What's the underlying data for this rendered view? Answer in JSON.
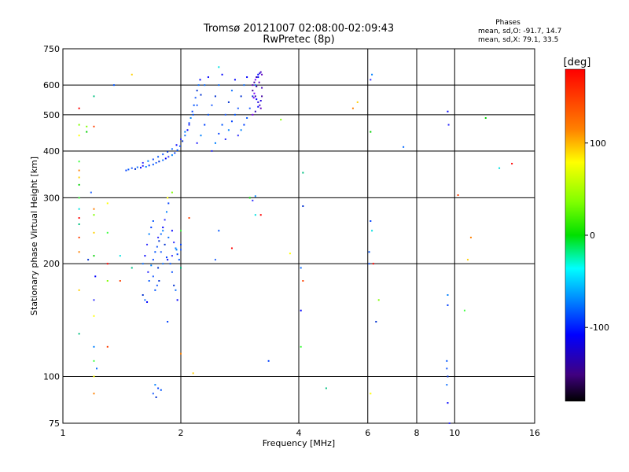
{
  "chart_data": {
    "type": "scatter",
    "title": "Tromsø 20121007 02:08:00-02:09:43",
    "subtitle": "RwPretec (8p)",
    "stats": {
      "label": "Phases",
      "line_o": "mean, sd,O: -91.7, 14.7",
      "line_x": "mean, sd,X:  79.1, 33.5"
    },
    "xlabel": "Frequency [MHz]",
    "ylabel": "Stationary phase Virtual Height [km]",
    "x_scale": "log2",
    "y_scale": "log",
    "xlim": [
      1,
      16
    ],
    "ylim": [
      75,
      750
    ],
    "x_ticks": [
      {
        "value": 1,
        "label": "1"
      },
      {
        "value": 2,
        "label": "2"
      },
      {
        "value": 4,
        "label": "4"
      },
      {
        "value": 6,
        "label": "6"
      },
      {
        "value": 8,
        "label": "8"
      },
      {
        "value": 10,
        "label": "10"
      },
      {
        "value": 16,
        "label": "16"
      }
    ],
    "y_ticks": [
      {
        "value": 75,
        "label": "75"
      },
      {
        "value": 100,
        "label": "100"
      },
      {
        "value": 200,
        "label": "200"
      },
      {
        "value": 300,
        "label": "300"
      },
      {
        "value": 400,
        "label": "400"
      },
      {
        "value": 500,
        "label": "500"
      },
      {
        "value": 600,
        "label": "600"
      },
      {
        "value": 750,
        "label": "750"
      }
    ],
    "grid": true,
    "colorbar": {
      "unit_label": "[deg]",
      "range": [
        -180,
        180
      ],
      "ticks": [
        {
          "value": 100,
          "label": "100"
        },
        {
          "value": 0,
          "label": "0"
        },
        {
          "value": -100,
          "label": "-100"
        }
      ]
    },
    "series": [
      {
        "mode": "O",
        "points": [
          [
            1.45,
            355
          ],
          [
            1.47,
            357
          ],
          [
            1.5,
            360
          ],
          [
            1.53,
            358
          ],
          [
            1.55,
            362
          ],
          [
            1.58,
            361
          ],
          [
            1.6,
            365
          ],
          [
            1.63,
            363
          ],
          [
            1.66,
            366
          ],
          [
            1.7,
            368
          ],
          [
            1.73,
            372
          ],
          [
            1.76,
            375
          ],
          [
            1.8,
            378
          ],
          [
            1.83,
            382
          ],
          [
            1.86,
            386
          ],
          [
            1.9,
            390
          ],
          [
            1.93,
            395
          ],
          [
            1.96,
            402
          ],
          [
            1.99,
            412
          ],
          [
            2.02,
            425
          ],
          [
            2.05,
            440
          ],
          [
            2.08,
            455
          ],
          [
            2.1,
            470
          ],
          [
            2.12,
            490
          ],
          [
            2.14,
            510
          ],
          [
            2.16,
            530
          ],
          [
            2.18,
            555
          ],
          [
            2.2,
            580
          ],
          [
            2.22,
            600
          ],
          [
            2.24,
            620
          ],
          [
            1.6,
            372
          ],
          [
            1.65,
            376
          ],
          [
            1.7,
            380
          ],
          [
            1.75,
            386
          ],
          [
            1.8,
            392
          ],
          [
            1.85,
            398
          ],
          [
            1.9,
            405
          ],
          [
            1.95,
            415
          ],
          [
            2.0,
            430
          ],
          [
            2.05,
            450
          ],
          [
            2.1,
            475
          ],
          [
            2.15,
            500
          ],
          [
            2.2,
            530
          ],
          [
            2.25,
            565
          ],
          [
            2.3,
            600
          ],
          [
            2.35,
            630
          ],
          [
            2.2,
            420
          ],
          [
            2.25,
            440
          ],
          [
            2.3,
            470
          ],
          [
            2.35,
            500
          ],
          [
            2.4,
            530
          ],
          [
            2.45,
            560
          ],
          [
            2.5,
            600
          ],
          [
            2.55,
            640
          ],
          [
            2.4,
            400
          ],
          [
            2.45,
            420
          ],
          [
            2.5,
            445
          ],
          [
            2.55,
            470
          ],
          [
            2.6,
            500
          ],
          [
            2.65,
            540
          ],
          [
            2.7,
            580
          ],
          [
            2.75,
            620
          ],
          [
            2.6,
            430
          ],
          [
            2.65,
            455
          ],
          [
            2.7,
            480
          ],
          [
            2.75,
            500
          ],
          [
            2.8,
            520
          ],
          [
            2.85,
            560
          ],
          [
            2.9,
            600
          ],
          [
            2.95,
            630
          ],
          [
            2.8,
            440
          ],
          [
            2.85,
            455
          ],
          [
            2.9,
            470
          ],
          [
            2.95,
            490
          ],
          [
            3.0,
            520
          ],
          [
            3.05,
            560
          ],
          [
            3.1,
            600
          ],
          [
            3.15,
            630
          ],
          [
            1.65,
            190
          ],
          [
            1.68,
            198
          ],
          [
            1.7,
            205
          ],
          [
            1.72,
            215
          ],
          [
            1.74,
            222
          ],
          [
            1.76,
            230
          ],
          [
            1.78,
            240
          ],
          [
            1.8,
            250
          ],
          [
            1.82,
            262
          ],
          [
            1.84,
            275
          ],
          [
            1.86,
            290
          ],
          [
            1.66,
            180
          ],
          [
            1.7,
            185
          ],
          [
            1.75,
            195
          ],
          [
            1.8,
            200
          ],
          [
            1.85,
            205
          ],
          [
            1.9,
            210
          ],
          [
            1.95,
            218
          ],
          [
            2.0,
            225
          ],
          [
            1.72,
            170
          ],
          [
            1.74,
            175
          ],
          [
            1.76,
            180
          ],
          [
            1.6,
            200
          ],
          [
            1.62,
            210
          ],
          [
            1.64,
            225
          ],
          [
            1.66,
            240
          ],
          [
            1.68,
            250
          ],
          [
            1.7,
            260
          ],
          [
            1.78,
            215
          ],
          [
            1.82,
            225
          ],
          [
            1.86,
            235
          ],
          [
            1.9,
            245
          ],
          [
            1.92,
            228
          ],
          [
            1.94,
            220
          ],
          [
            1.96,
            212
          ],
          [
            1.98,
            205
          ],
          [
            2.0,
            218
          ],
          [
            1.6,
            165
          ],
          [
            1.62,
            160
          ],
          [
            1.64,
            158
          ],
          [
            1.75,
            235
          ],
          [
            1.8,
            245
          ],
          [
            1.84,
            208
          ],
          [
            1.88,
            200
          ],
          [
            1.9,
            190
          ],
          [
            1.92,
            175
          ],
          [
            1.94,
            170
          ],
          [
            1.96,
            160
          ],
          [
            3.05,
            295
          ],
          [
            3.1,
            303
          ],
          [
            3.35,
            110
          ],
          [
            1.35,
            600
          ],
          [
            1.18,
            310
          ],
          [
            1.16,
            205
          ],
          [
            1.22,
            105
          ],
          [
            1.21,
            185
          ],
          [
            1.2,
            160
          ],
          [
            1.2,
            120
          ],
          [
            1.85,
            140
          ],
          [
            2.5,
            245
          ],
          [
            2.45,
            205
          ],
          [
            4.1,
            285
          ],
          [
            4.05,
            195
          ],
          [
            4.05,
            150
          ],
          [
            6.1,
            620
          ],
          [
            6.15,
            640
          ],
          [
            6.1,
            260
          ],
          [
            6.05,
            215
          ],
          [
            6.05,
            200
          ],
          [
            6.3,
            140
          ],
          [
            7.4,
            410
          ],
          [
            9.6,
            510
          ],
          [
            9.65,
            470
          ],
          [
            9.6,
            165
          ],
          [
            9.6,
            155
          ],
          [
            9.55,
            110
          ],
          [
            9.55,
            105
          ],
          [
            9.6,
            100
          ],
          [
            9.55,
            95
          ],
          [
            9.6,
            85
          ],
          [
            9.7,
            75
          ],
          [
            1.72,
            95
          ],
          [
            1.75,
            93
          ],
          [
            1.78,
            92
          ],
          [
            1.7,
            90
          ],
          [
            1.73,
            88
          ]
        ]
      },
      {
        "mode": "X",
        "points": [
          [
            3.05,
            600
          ],
          [
            3.08,
            610
          ],
          [
            3.1,
            620
          ],
          [
            3.12,
            630
          ],
          [
            3.15,
            640
          ],
          [
            3.18,
            645
          ],
          [
            3.2,
            650
          ],
          [
            3.22,
            640
          ],
          [
            3.05,
            580
          ],
          [
            3.08,
            570
          ],
          [
            3.1,
            560
          ],
          [
            3.12,
            550
          ],
          [
            3.15,
            540
          ],
          [
            3.18,
            530
          ],
          [
            3.2,
            520
          ],
          [
            3.22,
            560
          ],
          [
            3.05,
            500
          ],
          [
            3.1,
            510
          ],
          [
            3.15,
            525
          ],
          [
            3.2,
            545
          ],
          [
            3.22,
            590
          ],
          [
            3.17,
            610
          ],
          [
            3.12,
            595
          ],
          [
            3.07,
            555
          ],
          [
            1.1,
            520
          ],
          [
            1.1,
            470
          ],
          [
            1.1,
            440
          ],
          [
            1.2,
            560
          ],
          [
            1.2,
            465
          ],
          [
            1.1,
            375
          ],
          [
            1.1,
            355
          ],
          [
            1.1,
            340
          ],
          [
            1.1,
            325
          ],
          [
            1.1,
            280
          ],
          [
            1.1,
            265
          ],
          [
            1.2,
            270
          ],
          [
            1.3,
            290
          ],
          [
            1.1,
            255
          ],
          [
            1.1,
            235
          ],
          [
            1.3,
            242
          ],
          [
            1.1,
            215
          ],
          [
            1.2,
            242
          ],
          [
            1.2,
            210
          ],
          [
            1.4,
            210
          ],
          [
            1.3,
            200
          ],
          [
            1.3,
            180
          ],
          [
            1.2,
            145
          ],
          [
            1.1,
            130
          ],
          [
            1.3,
            120
          ],
          [
            1.2,
            110
          ],
          [
            1.2,
            90
          ],
          [
            1.5,
            640
          ],
          [
            1.15,
            450
          ],
          [
            2.5,
            670
          ],
          [
            3.2,
            270
          ],
          [
            3.6,
            485
          ],
          [
            3.8,
            213
          ],
          [
            4.1,
            350
          ],
          [
            4.1,
            180
          ],
          [
            4.05,
            120
          ],
          [
            5.5,
            520
          ],
          [
            5.65,
            540
          ],
          [
            6.1,
            450
          ],
          [
            6.15,
            245
          ],
          [
            6.2,
            200
          ],
          [
            6.4,
            160
          ],
          [
            6.1,
            90
          ],
          [
            4.7,
            93
          ],
          [
            10.2,
            305
          ],
          [
            10.6,
            150
          ],
          [
            11.0,
            235
          ],
          [
            10.8,
            205
          ],
          [
            12.0,
            490
          ],
          [
            13.0,
            360
          ],
          [
            14.0,
            370
          ],
          [
            1.9,
            310
          ],
          [
            1.85,
            300
          ],
          [
            2.0,
            195
          ],
          [
            2.1,
            265
          ],
          [
            2.0,
            245
          ],
          [
            2.0,
            115
          ],
          [
            2.15,
            102
          ],
          [
            3.0,
            300
          ],
          [
            3.1,
            270
          ],
          [
            2.7,
            220
          ],
          [
            1.15,
            465
          ],
          [
            1.2,
            100
          ],
          [
            1.5,
            195
          ],
          [
            1.4,
            180
          ],
          [
            1.1,
            300
          ],
          [
            1.2,
            280
          ],
          [
            1.1,
            170
          ]
        ]
      }
    ]
  }
}
